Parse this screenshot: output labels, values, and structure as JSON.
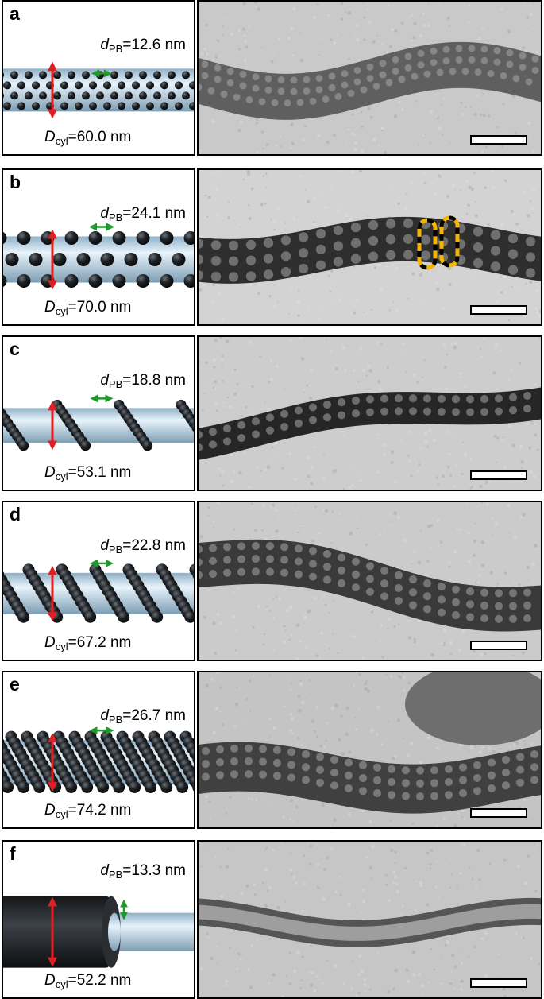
{
  "panels": [
    {
      "letter": "a",
      "d_symbol": "d",
      "d_sub": "PB",
      "d_value": "=12.6 nm",
      "D_symbol": "D",
      "D_sub": "cyl",
      "D_value": "=60.0 nm",
      "morphology": "spheres",
      "tem_tone": "#5f5f5f",
      "bg_tone": "#c9c9c9"
    },
    {
      "letter": "b",
      "d_symbol": "d",
      "d_sub": "PB",
      "d_value": "=24.1 nm",
      "D_symbol": "D",
      "D_sub": "cyl",
      "D_value": "=70.0 nm",
      "morphology": "large-spheres",
      "tem_tone": "#2e2e2e",
      "bg_tone": "#d3d3d3"
    },
    {
      "letter": "c",
      "d_symbol": "d",
      "d_sub": "PB",
      "d_value": "=18.8 nm",
      "D_symbol": "D",
      "D_sub": "cyl",
      "D_value": "=53.1 nm",
      "morphology": "single-helix",
      "tem_tone": "#262626",
      "bg_tone": "#cdcdcd"
    },
    {
      "letter": "d",
      "d_symbol": "d",
      "d_sub": "PB",
      "d_value": "=22.8 nm",
      "D_symbol": "D",
      "D_sub": "cyl",
      "D_value": "=67.2 nm",
      "morphology": "double-helix",
      "tem_tone": "#3a3a3a",
      "bg_tone": "#cbcbcb"
    },
    {
      "letter": "e",
      "d_symbol": "d",
      "d_sub": "PB",
      "d_value": "=26.7 nm",
      "D_symbol": "D",
      "D_sub": "cyl",
      "D_value": "=74.2 nm",
      "morphology": "triple-helix",
      "tem_tone": "#404040",
      "bg_tone": "#c4c4c4"
    },
    {
      "letter": "f",
      "d_symbol": "d",
      "d_sub": "PB",
      "d_value": "=13.3 nm",
      "D_symbol": "D",
      "D_sub": "cyl",
      "D_value": "=52.2 nm",
      "morphology": "core-shell",
      "tem_tone": "#555555",
      "bg_tone": "#c6c6c6"
    }
  ],
  "colors": {
    "arrow_red": "#e02020",
    "arrow_green": "#1f9a2a",
    "highlight_yellow": "#f4b400",
    "cylinder": "#b7d3e6",
    "sphere": "#1e2226"
  }
}
